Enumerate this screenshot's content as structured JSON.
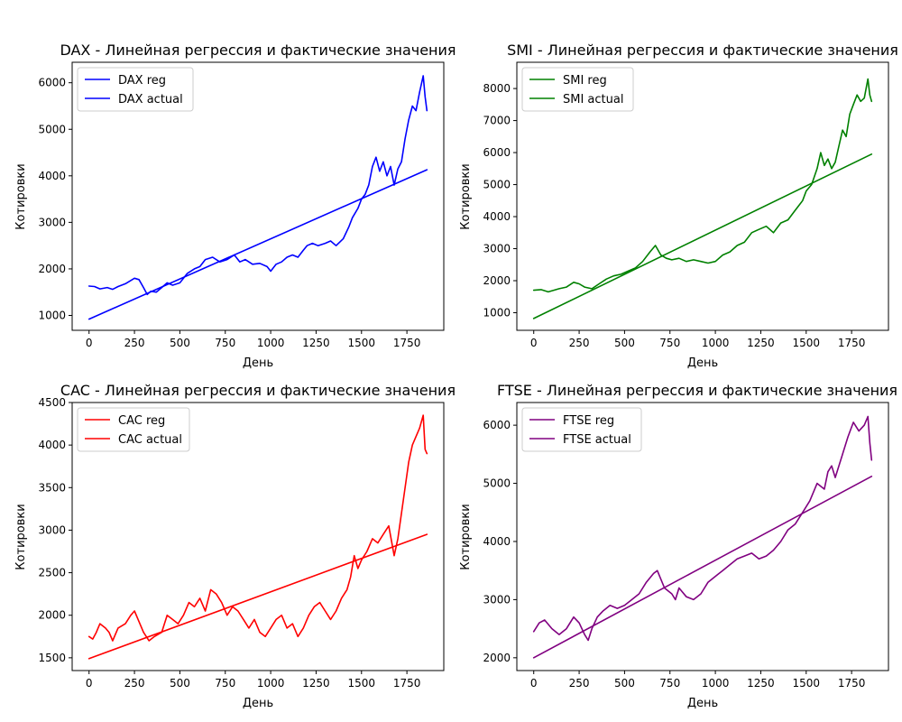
{
  "figure": {
    "panels": [
      {
        "title": "DAX - Линейная регрессия и фактические значения",
        "xlabel": "День",
        "ylabel": "Котировки",
        "xticks": [
          "0",
          "250",
          "500",
          "750",
          "1000",
          "1250",
          "1500",
          "1750"
        ],
        "yticks": [
          "1000",
          "2000",
          "3000",
          "4000",
          "5000",
          "6000"
        ],
        "legend": [
          "DAX reg",
          "DAX actual"
        ]
      },
      {
        "title": "SMI - Линейная регрессия и фактические значения",
        "xlabel": "День",
        "ylabel": "Котировки",
        "xticks": [
          "0",
          "250",
          "500",
          "750",
          "1000",
          "1250",
          "1500",
          "1750"
        ],
        "yticks": [
          "1000",
          "2000",
          "3000",
          "4000",
          "5000",
          "6000",
          "7000",
          "8000"
        ],
        "legend": [
          "SMI reg",
          "SMI actual"
        ]
      },
      {
        "title": "CAC - Линейная регрессия и фактические значения",
        "xlabel": "День",
        "ylabel": "Котировки",
        "xticks": [
          "0",
          "250",
          "500",
          "750",
          "1000",
          "1250",
          "1500",
          "1750"
        ],
        "yticks": [
          "1500",
          "2000",
          "2500",
          "3000",
          "3500",
          "4000",
          "4500"
        ],
        "legend": [
          "CAC reg",
          "CAC actual"
        ]
      },
      {
        "title": "FTSE - Линейная регрессия и фактические значения",
        "xlabel": "День",
        "ylabel": "Котировки",
        "xticks": [
          "0",
          "250",
          "500",
          "750",
          "1000",
          "1250",
          "1500",
          "1750"
        ],
        "yticks": [
          "2000",
          "3000",
          "4000",
          "5000",
          "6000"
        ],
        "legend": [
          "FTSE reg",
          "FTSE actual"
        ]
      }
    ]
  },
  "chart_data": [
    {
      "type": "line",
      "title": "DAX - Линейная регрессия и фактические значения",
      "xlabel": "День",
      "ylabel": "Котировки",
      "xlim": [
        -93,
        1953
      ],
      "ylim": [
        680,
        6440
      ],
      "xticks": [
        0,
        250,
        500,
        750,
        1000,
        1250,
        1500,
        1750
      ],
      "yticks": [
        1000,
        2000,
        3000,
        4000,
        5000,
        6000
      ],
      "legend_position": "upper-left",
      "color": "#0000ff",
      "series": [
        {
          "name": "DAX reg",
          "x": [
            0,
            1860
          ],
          "y": [
            920,
            4130
          ]
        },
        {
          "name": "DAX actual",
          "x": [
            0,
            30,
            60,
            100,
            130,
            160,
            200,
            250,
            275,
            300,
            320,
            340,
            370,
            400,
            430,
            460,
            500,
            540,
            580,
            610,
            640,
            680,
            720,
            760,
            800,
            830,
            860,
            900,
            940,
            980,
            1000,
            1030,
            1060,
            1090,
            1120,
            1150,
            1180,
            1200,
            1230,
            1260,
            1300,
            1330,
            1360,
            1400,
            1430,
            1450,
            1480,
            1500,
            1520,
            1540,
            1560,
            1580,
            1600,
            1620,
            1640,
            1660,
            1680,
            1700,
            1720,
            1740,
            1760,
            1780,
            1800,
            1820,
            1840,
            1850,
            1860
          ],
          "y": [
            1630,
            1620,
            1570,
            1600,
            1560,
            1620,
            1680,
            1800,
            1770,
            1600,
            1450,
            1520,
            1500,
            1600,
            1700,
            1650,
            1700,
            1900,
            2000,
            2050,
            2200,
            2250,
            2150,
            2200,
            2300,
            2150,
            2200,
            2100,
            2120,
            2050,
            1950,
            2100,
            2150,
            2250,
            2300,
            2250,
            2400,
            2500,
            2550,
            2500,
            2550,
            2600,
            2500,
            2650,
            2900,
            3100,
            3300,
            3500,
            3600,
            3800,
            4200,
            4400,
            4100,
            4300,
            4000,
            4200,
            3800,
            4150,
            4300,
            4800,
            5200,
            5500,
            5400,
            5800,
            6150,
            5700,
            5400
          ]
        }
      ]
    },
    {
      "type": "line",
      "title": "SMI - Линейная регрессия и фактические значения",
      "xlabel": "День",
      "ylabel": "Котировки",
      "xlim": [
        -93,
        1953
      ],
      "ylim": [
        450,
        8820
      ],
      "xticks": [
        0,
        250,
        500,
        750,
        1000,
        1250,
        1500,
        1750
      ],
      "yticks": [
        1000,
        2000,
        3000,
        4000,
        5000,
        6000,
        7000,
        8000
      ],
      "legend_position": "upper-left",
      "color": "#008000",
      "series": [
        {
          "name": "SMI reg",
          "x": [
            0,
            1860
          ],
          "y": [
            820,
            5950
          ]
        },
        {
          "name": "SMI actual",
          "x": [
            0,
            40,
            80,
            110,
            140,
            180,
            220,
            250,
            280,
            320,
            360,
            400,
            440,
            480,
            520,
            560,
            600,
            640,
            670,
            700,
            730,
            760,
            800,
            840,
            880,
            920,
            960,
            1000,
            1040,
            1080,
            1120,
            1160,
            1200,
            1240,
            1280,
            1320,
            1360,
            1400,
            1440,
            1480,
            1500,
            1530,
            1560,
            1580,
            1600,
            1620,
            1640,
            1660,
            1680,
            1700,
            1720,
            1740,
            1760,
            1780,
            1800,
            1820,
            1840,
            1850,
            1860
          ],
          "y": [
            1700,
            1720,
            1650,
            1700,
            1750,
            1800,
            1950,
            1900,
            1800,
            1750,
            1900,
            2050,
            2150,
            2200,
            2300,
            2400,
            2600,
            2900,
            3100,
            2800,
            2700,
            2650,
            2700,
            2600,
            2650,
            2600,
            2550,
            2600,
            2800,
            2900,
            3100,
            3200,
            3500,
            3600,
            3700,
            3500,
            3800,
            3900,
            4200,
            4500,
            4800,
            5000,
            5500,
            6000,
            5600,
            5800,
            5500,
            5700,
            6200,
            6700,
            6500,
            7200,
            7500,
            7800,
            7600,
            7700,
            8300,
            7800,
            7600
          ]
        }
      ]
    },
    {
      "type": "line",
      "title": "CAC - Линейная регрессия и фактические значения",
      "xlabel": "День",
      "ylabel": "Котировки",
      "xlim": [
        -93,
        1953
      ],
      "ylim": [
        1350,
        4500
      ],
      "xticks": [
        0,
        250,
        500,
        750,
        1000,
        1250,
        1500,
        1750
      ],
      "yticks": [
        1500,
        2000,
        2500,
        3000,
        3500,
        4000,
        4500
      ],
      "legend_position": "upper-left",
      "color": "#ff0000",
      "series": [
        {
          "name": "CAC reg",
          "x": [
            0,
            1860
          ],
          "y": [
            1490,
            2950
          ]
        },
        {
          "name": "CAC actual",
          "x": [
            0,
            20,
            40,
            60,
            90,
            110,
            130,
            160,
            200,
            230,
            250,
            270,
            300,
            330,
            360,
            400,
            430,
            460,
            490,
            520,
            550,
            580,
            610,
            640,
            670,
            700,
            730,
            760,
            790,
            820,
            850,
            880,
            910,
            940,
            970,
            1000,
            1030,
            1060,
            1090,
            1120,
            1150,
            1180,
            1210,
            1240,
            1270,
            1300,
            1330,
            1360,
            1390,
            1420,
            1440,
            1460,
            1480,
            1500,
            1530,
            1560,
            1590,
            1620,
            1650,
            1680,
            1700,
            1720,
            1740,
            1760,
            1780,
            1800,
            1820,
            1840,
            1850,
            1860
          ],
          "y": [
            1750,
            1720,
            1800,
            1900,
            1850,
            1800,
            1700,
            1850,
            1900,
            2000,
            2050,
            1950,
            1800,
            1700,
            1750,
            1800,
            2000,
            1950,
            1900,
            2000,
            2150,
            2100,
            2200,
            2050,
            2300,
            2250,
            2150,
            2000,
            2100,
            2050,
            1950,
            1850,
            1950,
            1800,
            1750,
            1850,
            1950,
            2000,
            1850,
            1900,
            1750,
            1850,
            2000,
            2100,
            2150,
            2050,
            1950,
            2050,
            2200,
            2300,
            2450,
            2700,
            2550,
            2650,
            2750,
            2900,
            2850,
            2950,
            3050,
            2700,
            2900,
            3200,
            3500,
            3800,
            4000,
            4100,
            4200,
            4350,
            3950,
            3900
          ]
        }
      ]
    },
    {
      "type": "line",
      "title": "FTSE - Линейная регрессия и фактические значения",
      "xlabel": "День",
      "ylabel": "Котировки",
      "xlim": [
        -93,
        1953
      ],
      "ylim": [
        1780,
        6390
      ],
      "xticks": [
        0,
        250,
        500,
        750,
        1000,
        1250,
        1500,
        1750
      ],
      "yticks": [
        2000,
        3000,
        4000,
        5000,
        6000
      ],
      "legend_position": "upper-left",
      "color": "#800080",
      "series": [
        {
          "name": "FTSE reg",
          "x": [
            0,
            1860
          ],
          "y": [
            2000,
            5120
          ]
        },
        {
          "name": "FTSE actual",
          "x": [
            0,
            30,
            60,
            100,
            140,
            180,
            220,
            250,
            280,
            300,
            320,
            350,
            380,
            420,
            460,
            500,
            540,
            580,
            620,
            660,
            680,
            720,
            760,
            780,
            800,
            840,
            880,
            920,
            960,
            1000,
            1040,
            1080,
            1120,
            1160,
            1200,
            1240,
            1280,
            1320,
            1360,
            1400,
            1440,
            1480,
            1520,
            1560,
            1600,
            1620,
            1640,
            1660,
            1700,
            1730,
            1760,
            1790,
            1820,
            1840,
            1850,
            1860
          ],
          "y": [
            2450,
            2600,
            2650,
            2500,
            2400,
            2500,
            2700,
            2600,
            2400,
            2300,
            2500,
            2700,
            2800,
            2900,
            2850,
            2900,
            3000,
            3100,
            3300,
            3450,
            3500,
            3200,
            3100,
            3000,
            3200,
            3050,
            3000,
            3100,
            3300,
            3400,
            3500,
            3600,
            3700,
            3750,
            3800,
            3700,
            3750,
            3850,
            4000,
            4200,
            4300,
            4500,
            4700,
            5000,
            4900,
            5200,
            5300,
            5100,
            5500,
            5800,
            6050,
            5900,
            6000,
            6150,
            5700,
            5400
          ]
        }
      ]
    }
  ]
}
